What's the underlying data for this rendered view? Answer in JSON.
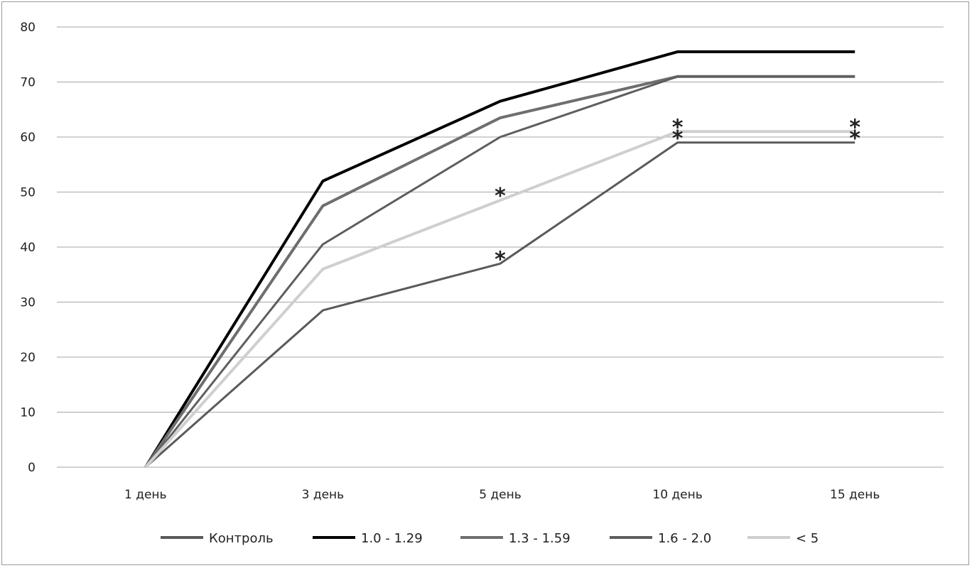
{
  "chart_data": {
    "type": "line",
    "categories": [
      "1 день",
      "3 день",
      "5 день",
      "10 день",
      "15 день"
    ],
    "ylim": [
      0,
      80
    ],
    "yticks": [
      0,
      10,
      20,
      30,
      40,
      50,
      60,
      70,
      80
    ],
    "grid": true,
    "legend_position": "bottom",
    "series": [
      {
        "name": "Контроль",
        "color": "#5a5a5a",
        "width": 3,
        "values": [
          0,
          28.5,
          37,
          59,
          59
        ]
      },
      {
        "name": "1.0 - 1.29",
        "color": "#000000",
        "width": 4,
        "values": [
          0,
          52,
          66.5,
          75.5,
          75.5
        ]
      },
      {
        "name": "1.3 - 1.59",
        "color": "#6e6e6e",
        "width": 4,
        "values": [
          0,
          47.5,
          63.5,
          71,
          71
        ]
      },
      {
        "name": "1.6 - 2.0",
        "color": "#5e5e5e",
        "width": 3,
        "values": [
          0,
          40.5,
          60,
          71,
          71
        ]
      },
      {
        "name": "< 5",
        "color": "#cfcfcf",
        "width": 4,
        "values": [
          0,
          36,
          48.5,
          61,
          61
        ]
      }
    ],
    "annotations": [
      {
        "text": "*",
        "category_index": 2,
        "y": 48.5
      },
      {
        "text": "*",
        "category_index": 2,
        "y": 37
      },
      {
        "text": "*",
        "category_index": 3,
        "y": 61
      },
      {
        "text": "*",
        "category_index": 3,
        "y": 59
      },
      {
        "text": "*",
        "category_index": 4,
        "y": 61
      },
      {
        "text": "*",
        "category_index": 4,
        "y": 59
      }
    ]
  }
}
